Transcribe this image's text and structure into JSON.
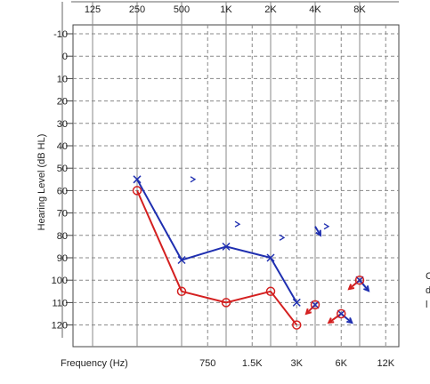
{
  "chart_data": {
    "type": "line",
    "title": "",
    "ylabel": "Hearing Level (dB HL)",
    "xlabel": "Frequency (Hz)",
    "x_scale": "log2",
    "ylim": [
      -10,
      120
    ],
    "y_inverted": true,
    "y_ticks": [
      -10,
      0,
      10,
      20,
      30,
      40,
      50,
      60,
      70,
      80,
      90,
      100,
      110,
      120
    ],
    "x_top_ticks": [
      {
        "label": "125",
        "hz": 125
      },
      {
        "label": "250",
        "hz": 250
      },
      {
        "label": "500",
        "hz": 500
      },
      {
        "label": "1K",
        "hz": 1000
      },
      {
        "label": "2K",
        "hz": 2000
      },
      {
        "label": "4K",
        "hz": 4000
      },
      {
        "label": "8K",
        "hz": 8000
      }
    ],
    "x_bottom_ticks": [
      {
        "label": "750",
        "hz": 750
      },
      {
        "label": "1.5K",
        "hz": 1500
      },
      {
        "label": "3K",
        "hz": 3000
      },
      {
        "label": "6K",
        "hz": 6000
      },
      {
        "label": "12K",
        "hz": 12000
      }
    ],
    "grid": true,
    "series": [
      {
        "color": "#1f2fb0",
        "marker": "X",
        "points": [
          [
            250,
            55
          ],
          [
            500,
            91
          ],
          [
            1000,
            85
          ],
          [
            2000,
            90
          ],
          [
            3000,
            110
          ],
          [
            4000,
            111
          ],
          [
            6000,
            115
          ],
          [
            8000,
            100
          ]
        ],
        "segments": [
          [
            [
              250,
              55
            ],
            [
              500,
              91
            ]
          ],
          [
            [
              500,
              91
            ],
            [
              1000,
              85
            ]
          ],
          [
            [
              1000,
              85
            ],
            [
              2000,
              90
            ]
          ],
          [
            [
              2000,
              90
            ],
            [
              3000,
              110
            ]
          ]
        ]
      },
      {
        "color": "#d42020",
        "marker": "O",
        "points": [
          [
            250,
            60
          ],
          [
            500,
            105
          ],
          [
            1000,
            110
          ],
          [
            2000,
            105
          ],
          [
            3000,
            120
          ],
          [
            4000,
            111
          ],
          [
            6000,
            115
          ],
          [
            8000,
            100
          ]
        ],
        "segments": [
          [
            [
              250,
              60
            ],
            [
              500,
              105
            ]
          ],
          [
            [
              500,
              105
            ],
            [
              1000,
              110
            ]
          ],
          [
            [
              1000,
              110
            ],
            [
              2000,
              105
            ]
          ],
          [
            [
              2000,
              105
            ],
            [
              3000,
              120
            ]
          ]
        ]
      }
    ],
    "bone_conduction_markers": [
      {
        "symbol": ">",
        "hz": 500,
        "db": 55,
        "color": "#1f2fb0"
      },
      {
        "symbol": ">",
        "hz": 1000,
        "db": 75,
        "color": "#1f2fb0"
      },
      {
        "symbol": ">",
        "hz": 2000,
        "db": 81,
        "color": "#1f2fb0"
      },
      {
        "symbol": ">",
        "hz": 4000,
        "db": 76,
        "color": "#1f2fb0"
      }
    ],
    "no_response_arrows": [
      {
        "hz": 4000,
        "db": 76,
        "dx": 6,
        "dy": 10,
        "color": "#1f2fb0"
      },
      {
        "hz": 8000,
        "db": 100,
        "dx": 10,
        "dy": 12,
        "color": "#1f2fb0"
      },
      {
        "hz": 6000,
        "db": 115,
        "dx": 12,
        "dy": 10,
        "color": "#1f2fb0"
      },
      {
        "hz": 4000,
        "db": 111,
        "dx": -10,
        "dy": 10,
        "color": "#d42020"
      },
      {
        "hz": 8000,
        "db": 100,
        "dx": -12,
        "dy": 10,
        "color": "#d42020"
      },
      {
        "hz": 6000,
        "db": 115,
        "dx": -14,
        "dy": 10,
        "color": "#d42020"
      }
    ]
  },
  "cut_off_text": [
    "C",
    "d",
    "l"
  ]
}
